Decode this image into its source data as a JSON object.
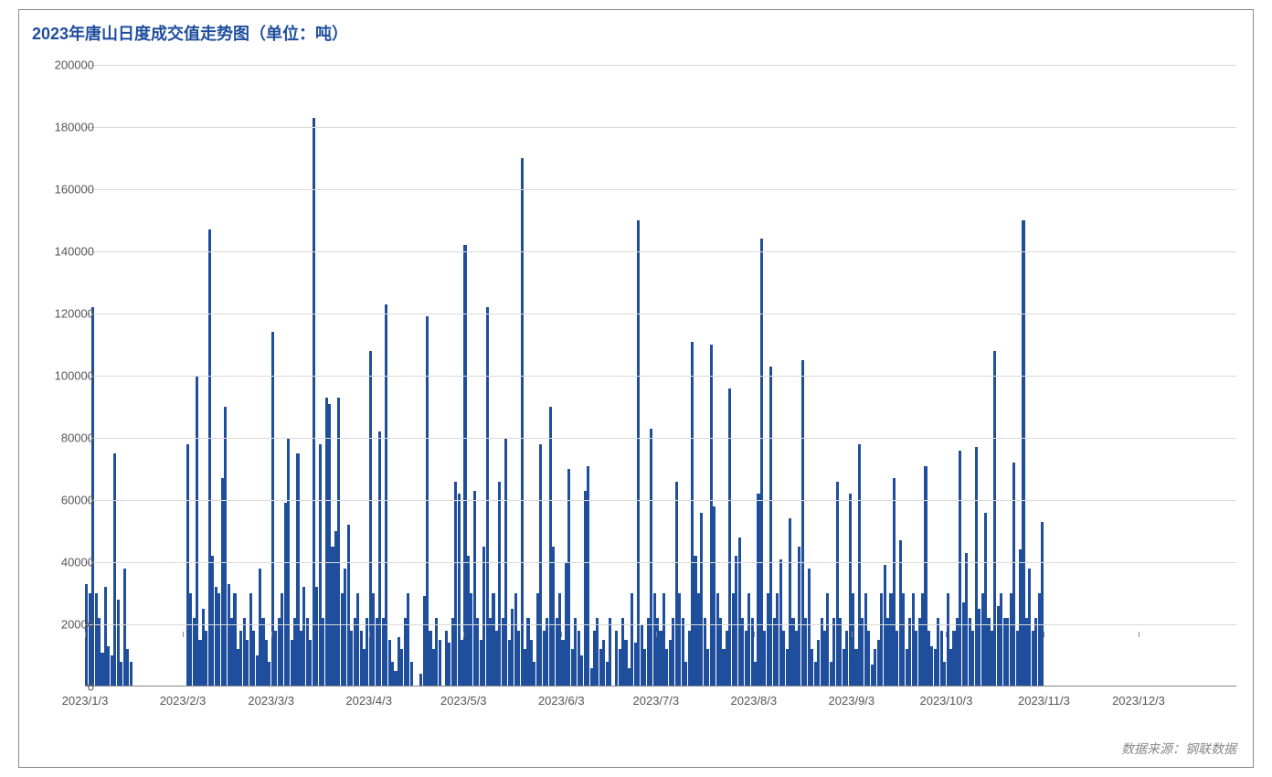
{
  "chart": {
    "type": "bar",
    "title": "2023年唐山日度成交值走势图（单位：吨）",
    "title_color": "#1f4e9c",
    "title_fontsize": 18,
    "data_source": "数据来源：钢联数据",
    "source_color": "#888888",
    "source_fontsize": 14,
    "bar_color": "#1f4e9c",
    "background_color": "#ffffff",
    "grid_color": "#d9d9d9",
    "border_color": "#888888",
    "axis_text_color": "#555555",
    "axis_fontsize": 13,
    "ylim": [
      0,
      200000
    ],
    "ytick_step": 20000,
    "ytick_labels": [
      "0",
      "20000",
      "40000",
      "60000",
      "80000",
      "100000",
      "120000",
      "140000",
      "160000",
      "180000",
      "200000"
    ],
    "xtick_labels": [
      "2023/1/3",
      "2023/2/3",
      "2023/3/3",
      "2023/4/3",
      "2023/5/3",
      "2023/6/3",
      "2023/7/3",
      "2023/8/3",
      "2023/9/3",
      "2023/10/3",
      "2023/11/3",
      "2023/12/3"
    ],
    "xtick_positions_days": [
      0,
      31,
      59,
      90,
      120,
      151,
      181,
      212,
      243,
      273,
      304,
      334
    ],
    "total_days": 365,
    "bar_width_ratio": 0.9,
    "values": [
      33000,
      30000,
      122000,
      30000,
      22000,
      11000,
      32000,
      13000,
      10000,
      75000,
      28000,
      8000,
      38000,
      12000,
      8000,
      0,
      0,
      0,
      0,
      0,
      0,
      0,
      0,
      0,
      0,
      0,
      0,
      0,
      0,
      0,
      0,
      0,
      78000,
      30000,
      22000,
      100000,
      15000,
      25000,
      18000,
      147000,
      42000,
      32000,
      30000,
      67000,
      90000,
      33000,
      22000,
      30000,
      12000,
      18000,
      22000,
      15000,
      30000,
      18000,
      10000,
      38000,
      22000,
      15000,
      8000,
      114000,
      18000,
      22000,
      30000,
      59000,
      80000,
      15000,
      22000,
      75000,
      18000,
      32000,
      22000,
      15000,
      183000,
      32000,
      78000,
      22000,
      93000,
      91000,
      45000,
      50000,
      93000,
      30000,
      38000,
      52000,
      18000,
      22000,
      30000,
      18000,
      12000,
      22000,
      108000,
      30000,
      22000,
      82000,
      22000,
      123000,
      15000,
      8000,
      5000,
      16000,
      12000,
      22000,
      30000,
      8000,
      0,
      0,
      4000,
      29000,
      119000,
      18000,
      12000,
      22000,
      15000,
      0,
      18000,
      14000,
      22000,
      66000,
      62000,
      15000,
      142000,
      42000,
      30000,
      63000,
      22000,
      15000,
      45000,
      122000,
      22000,
      30000,
      18000,
      66000,
      22000,
      80000,
      15000,
      25000,
      30000,
      18000,
      170000,
      12000,
      22000,
      15000,
      8000,
      30000,
      78000,
      18000,
      22000,
      90000,
      45000,
      22000,
      30000,
      15000,
      40000,
      70000,
      12000,
      22000,
      18000,
      10000,
      63000,
      71000,
      6000,
      18000,
      22000,
      12000,
      15000,
      8000,
      22000,
      0,
      18000,
      12000,
      22000,
      15000,
      6000,
      30000,
      14000,
      150000,
      20000,
      12000,
      22000,
      83000,
      30000,
      22000,
      18000,
      30000,
      12000,
      15000,
      22000,
      66000,
      30000,
      22000,
      8000,
      18000,
      111000,
      42000,
      30000,
      56000,
      22000,
      12000,
      110000,
      58000,
      30000,
      22000,
      12000,
      18000,
      96000,
      30000,
      42000,
      48000,
      22000,
      18000,
      30000,
      22000,
      8000,
      62000,
      144000,
      18000,
      30000,
      103000,
      22000,
      30000,
      41000,
      18000,
      12000,
      54000,
      22000,
      18000,
      45000,
      105000,
      22000,
      38000,
      12000,
      8000,
      15000,
      22000,
      18000,
      30000,
      8000,
      22000,
      66000,
      22000,
      12000,
      18000,
      62000,
      30000,
      12000,
      78000,
      22000,
      30000,
      18000,
      7000,
      12000,
      15000,
      30000,
      39000,
      22000,
      30000,
      67000,
      18000,
      47000,
      30000,
      12000,
      22000,
      30000,
      18000,
      22000,
      30000,
      71000,
      18000,
      13000,
      12000,
      22000,
      18000,
      8000,
      30000,
      12000,
      18000,
      22000,
      76000,
      27000,
      43000,
      22000,
      18000,
      77000,
      25000,
      30000,
      56000,
      22000,
      18000,
      108000,
      26000,
      30000,
      22000,
      22000,
      30000,
      72000,
      18000,
      44000,
      150000,
      22000,
      38000,
      18000,
      22000,
      30000,
      53000,
      0,
      0,
      0,
      0,
      0,
      0,
      0,
      0,
      0,
      0,
      0,
      0,
      0,
      0,
      0,
      0,
      0,
      0,
      0,
      0,
      0,
      0,
      0,
      0,
      0,
      0,
      0,
      0,
      0,
      0,
      0,
      0,
      0,
      0,
      0,
      0,
      0,
      0,
      0,
      0,
      0,
      0,
      0,
      0,
      0,
      0,
      0,
      0,
      0,
      0,
      0,
      0,
      0,
      0,
      0,
      0,
      0,
      0,
      0,
      0,
      0
    ]
  }
}
